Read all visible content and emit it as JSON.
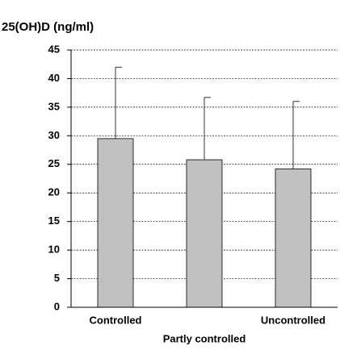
{
  "chart_data": {
    "type": "bar",
    "title": "25(OH)D (ng/ml)",
    "categories": [
      "Controlled",
      "Partly controlled",
      "Uncontrolled"
    ],
    "values": [
      29.5,
      25.8,
      24.2
    ],
    "errors": [
      12.5,
      10.9,
      11.8
    ],
    "color": "#c0c0c0",
    "ylim": [
      0,
      45
    ],
    "yticks": [
      0,
      5,
      10,
      15,
      20,
      25,
      30,
      35,
      40,
      45
    ],
    "grid": true
  }
}
